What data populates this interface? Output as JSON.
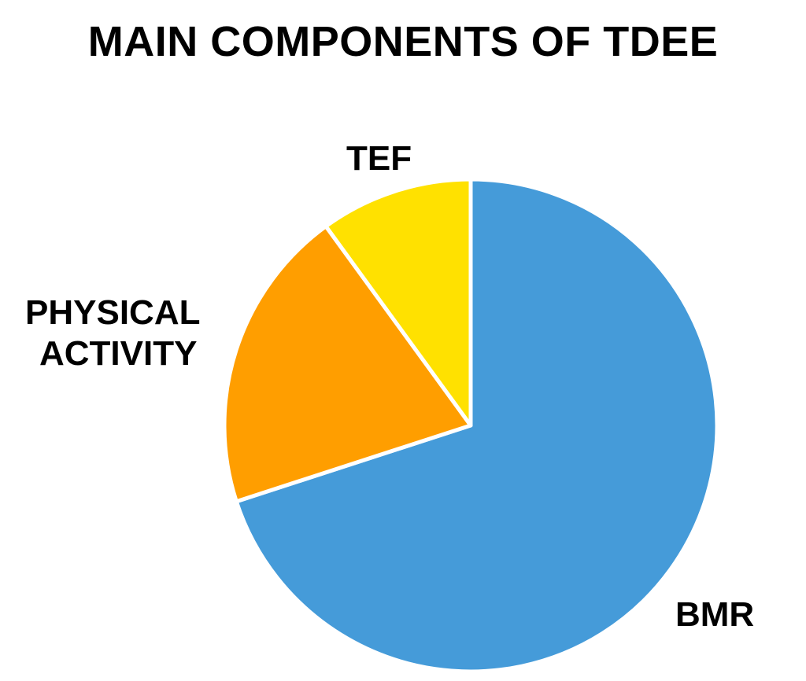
{
  "chart_data": {
    "type": "pie",
    "title": "MAIN COMPONENTS OF TDEE",
    "slices": [
      {
        "label": "BMR",
        "value": 70,
        "color": "#459BD9"
      },
      {
        "label": "PHYSICAL ACTIVITY",
        "label_lines": [
          "PHYSICAL",
          "ACTIVITY"
        ],
        "value": 20,
        "color": "#FF9E00"
      },
      {
        "label": "TEF",
        "value": 10,
        "color": "#FFE100"
      }
    ],
    "start": "top",
    "direction": "clockwise"
  }
}
